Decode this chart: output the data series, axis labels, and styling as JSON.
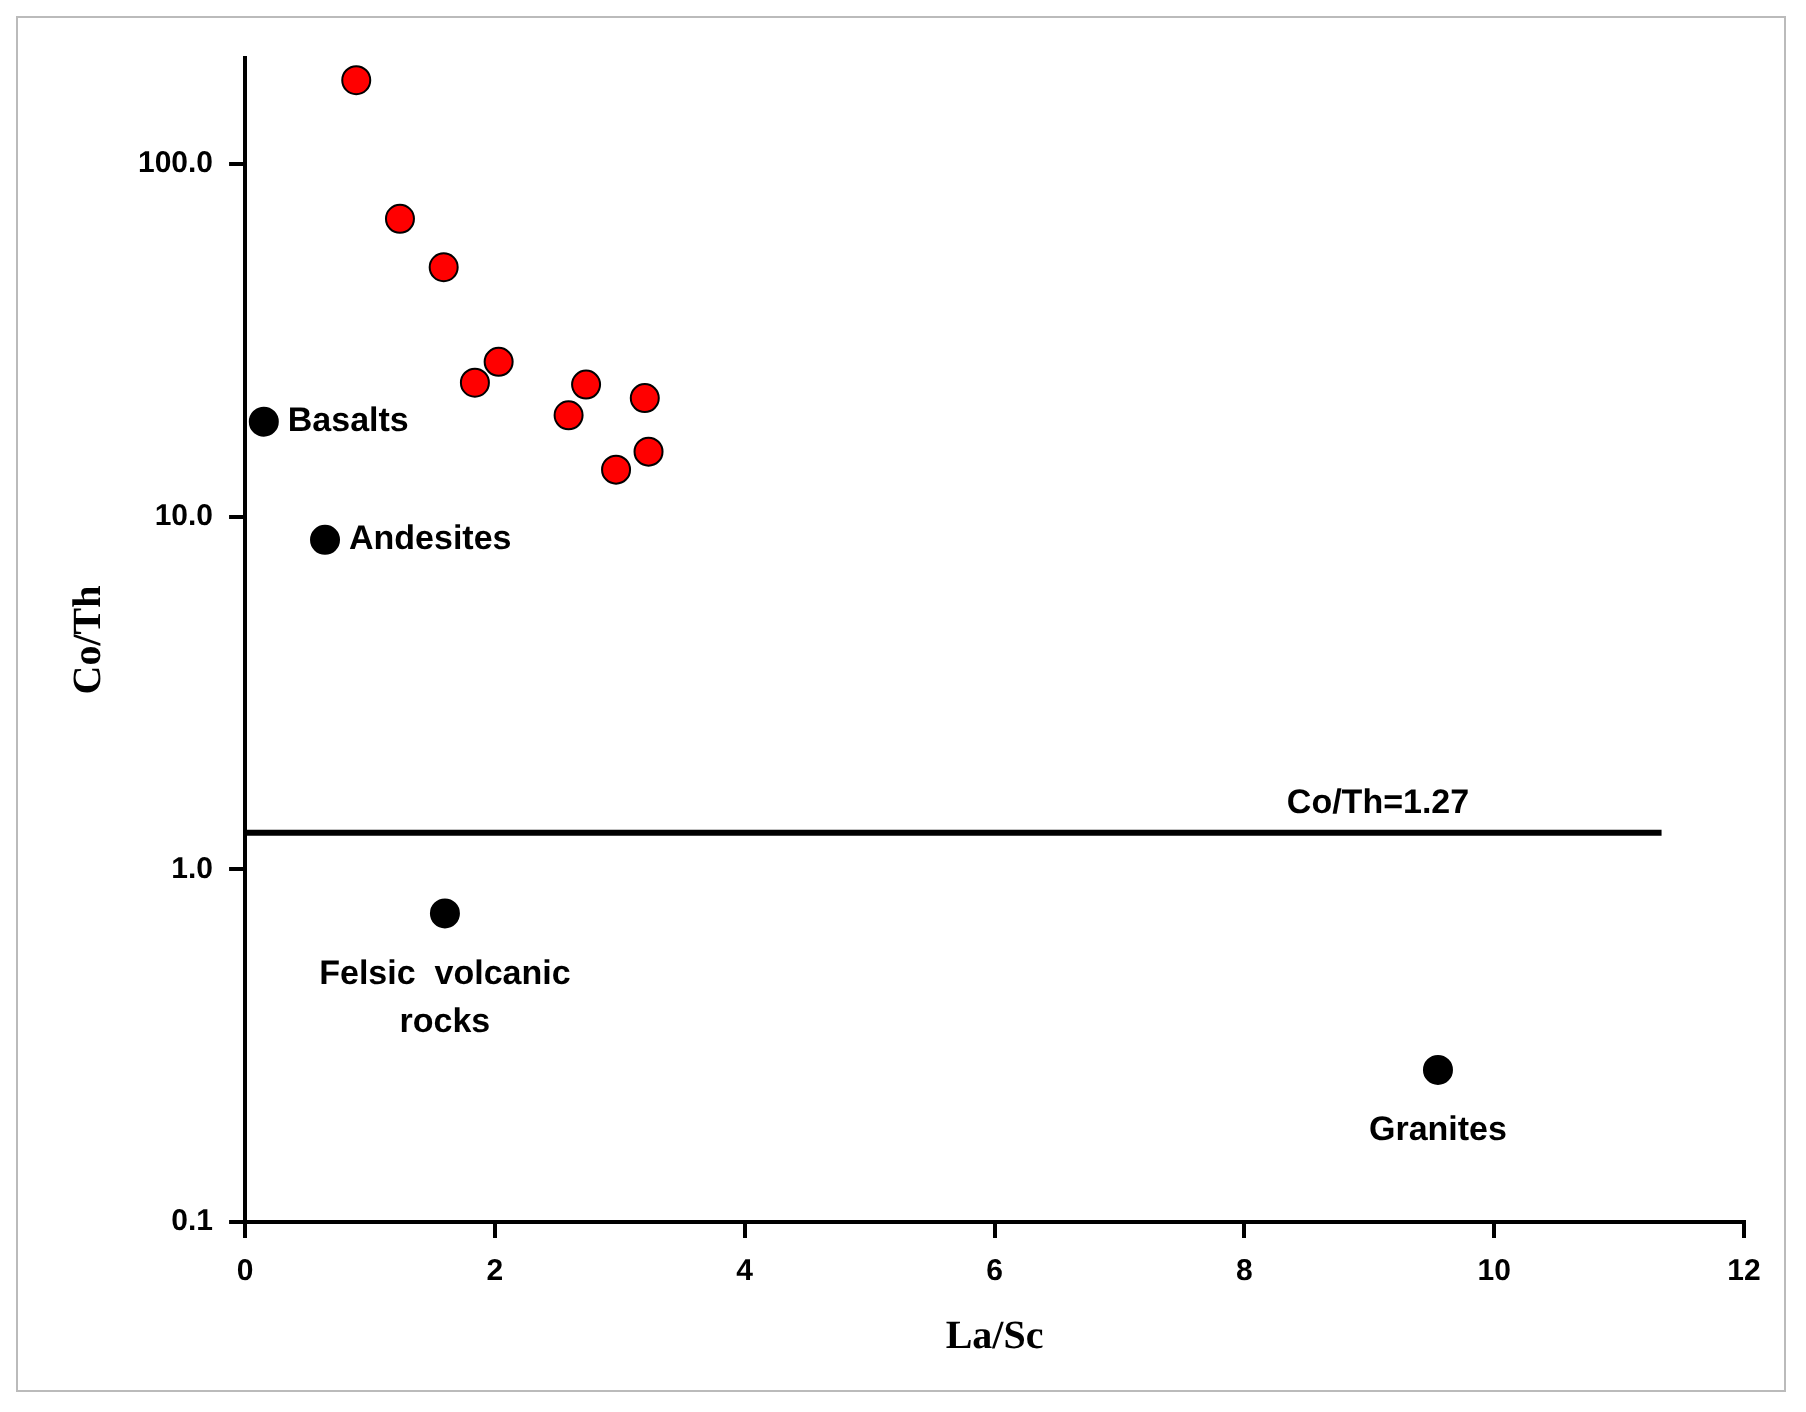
{
  "chart_data": {
    "type": "scatter",
    "xlabel": "La/Sc",
    "ylabel": "Co/Th",
    "log": "y",
    "xlim": [
      0,
      12
    ],
    "xticks": [
      0,
      2,
      4,
      6,
      8,
      10,
      12
    ],
    "ylim": [
      0.1,
      200
    ],
    "yticks": [
      {
        "value": 0.1,
        "label": "0.1"
      },
      {
        "value": 1,
        "label": "1.0"
      },
      {
        "value": 10,
        "label": "10.0"
      },
      {
        "value": 100,
        "label": "100.0"
      }
    ],
    "grid": false,
    "legend": false,
    "series": [
      {
        "color": "#ff0000",
        "marker": "circle",
        "x": [
          0.89,
          1.24,
          1.59,
          1.84,
          2.03,
          2.59,
          2.73,
          3.2,
          2.97,
          3.23
        ],
        "values": [
          173,
          70,
          51,
          24,
          27.5,
          19.4,
          23.7,
          21.7,
          13.6,
          15.3
        ]
      },
      {
        "color": "#000000",
        "marker": "circle",
        "x": [
          0.15,
          0.64,
          1.6,
          9.55
        ],
        "values": [
          18.6,
          8.6,
          0.75,
          0.27
        ]
      },
      {
        "type": "line",
        "color": "#000000",
        "marker": "none",
        "x": [
          0,
          11.34
        ],
        "values": [
          1.27,
          1.27
        ]
      }
    ],
    "annotations": [
      {
        "text": "Basalts",
        "x": 0.15,
        "y": 18.6
      },
      {
        "text": "Andesites",
        "x": 0.64,
        "y": 8.6
      },
      {
        "text": "Felsic  volcanic rocks",
        "x": 1.6,
        "y": 0.75
      },
      {
        "text": "Granites",
        "x": 9.55,
        "y": 0.27
      },
      {
        "text": "Co/Th=1.27",
        "x": 9.07,
        "y": 1.27
      }
    ]
  }
}
